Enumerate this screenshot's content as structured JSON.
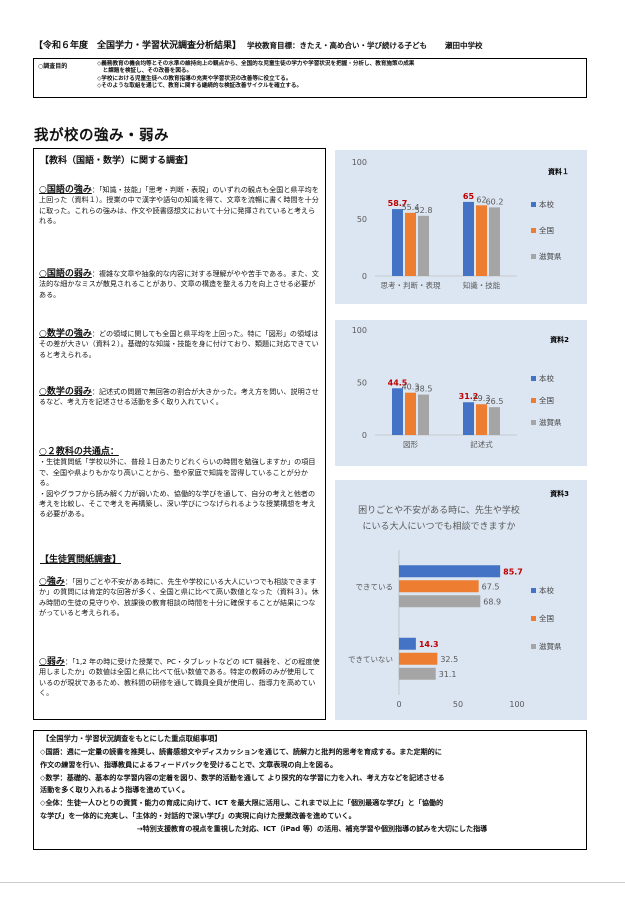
{
  "header": {
    "title": "【令和６年度　全国学力・学習状況調査分析結果】",
    "goal": "学校教育目標：きたえ・高め合い・学び続ける子ども",
    "school": "瀬田中学校"
  },
  "purpose": {
    "label": "○調査目的",
    "lines": [
      "◇義務教育の機会均等とその水準の維持向上の観点から、全国的な児童生徒の学力や学習状況を把握・分析し、教育施策の成果",
      "　と課題を検証し、その改善を図る。",
      "◇学校における児童生徒への教育指導の充実や学習状況の改善等に役立てる。",
      "◇そのような取組を通じて、教育に関する継続的な検証改善サイクルを確立する。"
    ]
  },
  "section_title": "我が校の強み・弱み",
  "left": {
    "subject_heading": "【教科（国語・数学）に関する調査】",
    "kokugo_strength_lead": "○国語の強み",
    "kokugo_strength_text": "：「知識・技能」「思考・判断・表現」のいずれの観点も全国と県平均を上回った（資料１）。授業の中で漢字や語句の知識を得て、文章を流暢に書く時間を十分に取った。これらの強みは、作文や読書感想文において十分に発揮されていると考えられる。",
    "kokugo_weak_lead": "○国語の弱み",
    "kokugo_weak_text": "：複雑な文章や抽象的な内容に対する理解がやや苦手である。また、文法的な細かなミスが散見されることがあり、文章の構造を整える力を向上させる必要がある。",
    "math_strength_lead": "○数学の強み",
    "math_strength_text": "：どの領域に関しても全国と県平均を上回った。特に「図形」の領域はその差が大きい（資料２）。基礎的な知識・技能を身に付けており、類題に対応できていると考えられる。",
    "math_weak_lead": "○数学の弱み",
    "math_weak_text": "：記述式の問題で無回答の割合が大きかった。考え方を問い、説明させるなど、考え方を記述させる活動を多く取り入れていく。",
    "common_head": "○２教科の共通点：",
    "common_text_1": "・生徒質問紙「学校以外に、普段１日あたりどれくらいの時間を勉強しますか」の項目で、全国や県よりもかなり高いことから、塾や家庭で知識を習得していることが分かる。",
    "common_text_2": "・図やグラフから読み解く力が弱いため、協働的な学びを通して、自分の考えと他者の考えを比較し、そこで考えを再構築し、深い学びにつなげられるような授業構想を考える必要がある。",
    "survey_heading": "【生徒質問紙調査】",
    "survey_strength_lead": "○強み",
    "survey_strength_text": "：「困りごとや不安がある時に、先生や学校にいる大人にいつでも相談できますか」の質問には肯定的な回答が多く、全国と県に比べて高い数値となった（資料３）。休み時間の生徒の見守りや、放課後の教育相談の時間を十分に確保することが結果につながっていると考えられる。",
    "survey_weak_lead": "○弱み",
    "survey_weak_text": "：「1,2 年の時に受けた授業で、PC・タブレットなどの ICT 機器を、どの程度使用しましたか」の数値は全国と県に比べて低い数値である。特定の教師のみが使用しているのが現状であるため、教科間の研修を通して職員全員が使用し、指導力を高めていく。"
  },
  "chart_data": [
    {
      "type": "bar",
      "title": "資料１",
      "categories": [
        "思考・判断・表現",
        "知識・技能"
      ],
      "series": [
        {
          "name": "本校",
          "values": [
            58.7,
            65
          ]
        },
        {
          "name": "全国",
          "values": [
            55.4,
            62
          ]
        },
        {
          "name": "滋賀県",
          "values": [
            52.8,
            60.2
          ]
        }
      ],
      "ylim": [
        0,
        100
      ],
      "yticks": [
        "0",
        "50",
        "100"
      ],
      "colors": [
        "#4472c4",
        "#ed7d31",
        "#a5a5a5"
      ],
      "label_color_highlight": "#c00000",
      "legend": "right"
    },
    {
      "type": "bar",
      "title": "資料2",
      "categories": [
        "図形",
        "記述式"
      ],
      "series": [
        {
          "name": "本校",
          "values": [
            44.5,
            31.2
          ]
        },
        {
          "name": "全国",
          "values": [
            40.3,
            29.3
          ]
        },
        {
          "name": "滋賀県",
          "values": [
            38.5,
            26.5
          ]
        }
      ],
      "ylim": [
        0,
        100
      ],
      "yticks": [
        "0",
        "50",
        "100"
      ],
      "colors": [
        "#4472c4",
        "#ed7d31",
        "#a5a5a5"
      ],
      "label_color_highlight": "#c00000",
      "legend": "right"
    },
    {
      "type": "bar",
      "orientation": "horizontal",
      "title": "資料3",
      "subtitle_lines": [
        "困りごとや不安がある時に、先生や学校",
        "にいる大人にいつでも相談できますか"
      ],
      "categories": [
        "できている",
        "できていない"
      ],
      "series": [
        {
          "name": "本校",
          "values": [
            85.7,
            14.3
          ]
        },
        {
          "name": "全国",
          "values": [
            67.5,
            32.5
          ]
        },
        {
          "name": "滋賀県",
          "values": [
            68.9,
            31.1
          ]
        }
      ],
      "xlim": [
        0,
        100
      ],
      "xticks": [
        "0",
        "50",
        "100"
      ],
      "colors": [
        "#4472c4",
        "#ed7d31",
        "#a5a5a5"
      ],
      "label_color_highlight": "#c00000",
      "legend": "right"
    }
  ],
  "bottom": {
    "title": "【全国学力・学習状況調査をもとにした重点取組事項】",
    "lines": [
      "◇国語：週に一定量の読書を推奨し、読書感想文やディスカッションを通じて、読解力と批判的思考を育成する。また定期的に",
      "作文の練習を行い、指導教員によるフィードバックを受けることで、文章表現の向上を図る。",
      "◇数学：基礎的、基本的な学習内容の定着を図り、数学的活動を通して より探究的な学習に力を入れ、考え方などを記述させる",
      "活動を多く取り入れるよう指導を進めていく。",
      "◇全体：生徒一人ひとりの資質・能力の育成に向けて、ICT を最大限に活用し、これまで以上に「個別最適な学び」と「協働的",
      "な学び」を一体的に充実し、「主体的・対話的で深い学び」の実現に向けた授業改善を進めていく。"
    ],
    "final": "→特別支援教育の視点を重視した対応、ICT（iPad 等）の活用、補充学習や個別指導の試みを大切にした指導"
  }
}
